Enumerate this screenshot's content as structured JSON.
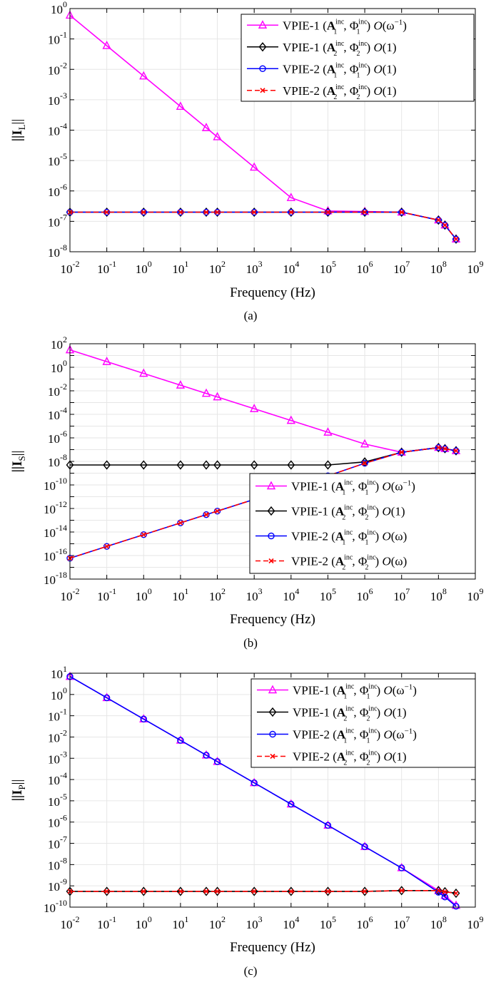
{
  "figure": {
    "captions": [
      "(a)",
      "(b)",
      "(c)"
    ]
  },
  "colors": {
    "vpie1_set1": "#ff00ff",
    "vpie1_set2": "#000000",
    "vpie2_set1": "#0000ff",
    "vpie2_set2": "#ff0000",
    "grid": "#e6e6e6"
  },
  "chart_data": [
    {
      "type": "line",
      "caption": "(a)",
      "xlabel": "Frequency (Hz)",
      "ylabel": "||I_L||",
      "ylabel_main": "||I",
      "ylabel_sub": "L",
      "ylabel_end": "||",
      "xscale": "log",
      "yscale": "log",
      "xlim": [
        0.01,
        1000000000
      ],
      "ylim": [
        1e-08,
        1
      ],
      "xtick_exponents": [
        "-2",
        "-1",
        "0",
        "1",
        "2",
        "3",
        "4",
        "5",
        "6",
        "7",
        "8",
        "9"
      ],
      "ytick_exponents": [
        "0",
        "-1",
        "-2",
        "-3",
        "-4",
        "-5",
        "-6",
        "-7",
        "-8"
      ],
      "grid": true,
      "legend_position": "top-right",
      "x": [
        0.01,
        0.1,
        1,
        10,
        50,
        100,
        1000,
        10000,
        100000,
        1000000,
        10000000,
        100000000,
        150000000,
        300000000
      ],
      "series": [
        {
          "name": "VPIE-1 (A1inc, Φ1inc) O(ω−1)",
          "label": {
            "solver": "VPIE-1",
            "idx": "1",
            "order": "ω",
            "order_sup": "−1"
          },
          "color": "#ff00ff",
          "marker": "triangle",
          "values": [
            0.6,
            0.06,
            0.006,
            0.0006,
            0.00012,
            6e-05,
            6e-06,
            6e-07,
            2.2e-07,
            2.1e-07,
            2e-07,
            1.1e-07,
            7.5e-08,
            2.6e-08
          ]
        },
        {
          "name": "VPIE-1 (A2inc, Φ2inc) O(1)",
          "label": {
            "solver": "VPIE-1",
            "idx": "2",
            "order": "1",
            "order_sup": ""
          },
          "color": "#000000",
          "marker": "diamond",
          "values": [
            2e-07,
            2e-07,
            2e-07,
            2e-07,
            2e-07,
            2e-07,
            2e-07,
            2e-07,
            2e-07,
            2e-07,
            2e-07,
            1.1e-07,
            7.5e-08,
            2.6e-08
          ]
        },
        {
          "name": "VPIE-2 (A1inc, Φ1inc) O(1)",
          "label": {
            "solver": "VPIE-2",
            "idx": "1",
            "order": "1",
            "order_sup": ""
          },
          "color": "#0000ff",
          "marker": "circle",
          "values": [
            2e-07,
            2e-07,
            2e-07,
            2e-07,
            2e-07,
            2e-07,
            2e-07,
            2e-07,
            2e-07,
            2e-07,
            2e-07,
            1.1e-07,
            7.5e-08,
            2.6e-08
          ]
        },
        {
          "name": "VPIE-2 (A2inc, Φ2inc) O(1)",
          "label": {
            "solver": "VPIE-2",
            "idx": "2",
            "order": "1",
            "order_sup": ""
          },
          "color": "#ff0000",
          "marker": "x",
          "dashed": true,
          "values": [
            2e-07,
            2e-07,
            2e-07,
            2e-07,
            2e-07,
            2e-07,
            2e-07,
            2e-07,
            2e-07,
            2e-07,
            2e-07,
            1.1e-07,
            7.5e-08,
            2.6e-08
          ]
        }
      ]
    },
    {
      "type": "line",
      "caption": "(b)",
      "xlabel": "Frequency (Hz)",
      "ylabel": "||I_S||",
      "ylabel_main": "||I",
      "ylabel_sub": "S",
      "ylabel_end": "||",
      "xscale": "log",
      "yscale": "log",
      "xlim": [
        0.01,
        1000000000
      ],
      "ylim": [
        1e-18,
        100
      ],
      "xtick_exponents": [
        "-2",
        "-1",
        "0",
        "1",
        "2",
        "3",
        "4",
        "5",
        "6",
        "7",
        "8",
        "9"
      ],
      "ytick_exponents": [
        "2",
        "0",
        "-2",
        "-4",
        "-6",
        "-8",
        "-10",
        "-12",
        "-14",
        "-16",
        "-18"
      ],
      "grid": true,
      "legend_position": "bottom-right",
      "x": [
        0.01,
        0.1,
        1,
        10,
        50,
        100,
        1000,
        10000,
        100000,
        1000000,
        10000000,
        100000000,
        150000000,
        300000000
      ],
      "series": [
        {
          "name": "VPIE-1 (A1inc, Φ1inc) O(ω−1)",
          "label": {
            "solver": "VPIE-1",
            "idx": "1",
            "order": "ω",
            "order_sup": "−1"
          },
          "color": "#ff00ff",
          "marker": "triangle",
          "values": [
            30,
            3,
            0.3,
            0.03,
            0.006,
            0.003,
            0.0003,
            3e-05,
            3e-06,
            3e-07,
            6e-08,
            1.5e-07,
            1.2e-07,
            8e-08
          ]
        },
        {
          "name": "VPIE-1 (A2inc, Φ2inc) O(1)",
          "label": {
            "solver": "VPIE-1",
            "idx": "2",
            "order": "1",
            "order_sup": ""
          },
          "color": "#000000",
          "marker": "diamond",
          "values": [
            5e-09,
            5e-09,
            5e-09,
            5e-09,
            5e-09,
            5e-09,
            5e-09,
            5e-09,
            5e-09,
            9e-09,
            6e-08,
            1.5e-07,
            1.2e-07,
            8e-08
          ]
        },
        {
          "name": "VPIE-2 (A1inc, Φ1inc) O(ω)",
          "label": {
            "solver": "VPIE-2",
            "idx": "1",
            "order": "ω",
            "order_sup": ""
          },
          "color": "#0000ff",
          "marker": "circle",
          "values": [
            6e-17,
            6e-16,
            6e-15,
            6e-14,
            3e-13,
            6e-13,
            6e-12,
            6e-11,
            6e-10,
            7e-09,
            6e-08,
            1.5e-07,
            1.2e-07,
            8e-08
          ]
        },
        {
          "name": "VPIE-2 (A2inc, Φ2inc) O(ω)",
          "label": {
            "solver": "VPIE-2",
            "idx": "2",
            "order": "ω",
            "order_sup": ""
          },
          "color": "#ff0000",
          "marker": "x",
          "dashed": true,
          "values": [
            6e-17,
            6e-16,
            6e-15,
            6e-14,
            3e-13,
            6e-13,
            6e-12,
            6e-11,
            6e-10,
            7e-09,
            6e-08,
            1.5e-07,
            1.2e-07,
            8e-08
          ]
        }
      ]
    },
    {
      "type": "line",
      "caption": "(c)",
      "xlabel": "Frequency (Hz)",
      "ylabel": "||I_P||",
      "ylabel_main": "||I",
      "ylabel_sub": "P",
      "ylabel_end": "||",
      "xscale": "log",
      "yscale": "log",
      "xlim": [
        0.01,
        1000000000
      ],
      "ylim": [
        1e-10,
        10
      ],
      "xtick_exponents": [
        "-2",
        "-1",
        "0",
        "1",
        "2",
        "3",
        "4",
        "5",
        "6",
        "7",
        "8",
        "9"
      ],
      "ytick_exponents": [
        "1",
        "0",
        "-1",
        "-2",
        "-3",
        "-4",
        "-5",
        "-6",
        "-7",
        "-8",
        "-9",
        "-10"
      ],
      "grid": true,
      "legend_position": "top-right",
      "x": [
        0.01,
        0.1,
        1,
        10,
        50,
        100,
        1000,
        10000,
        100000,
        1000000,
        10000000,
        100000000,
        150000000,
        300000000
      ],
      "series": [
        {
          "name": "VPIE-1 (A1inc, Φ1inc) O(ω−1)",
          "label": {
            "solver": "VPIE-1",
            "idx": "1",
            "order": "ω",
            "order_sup": "−1"
          },
          "color": "#ff00ff",
          "marker": "triangle",
          "values": [
            7,
            0.7,
            0.07,
            0.007,
            0.0014,
            0.0007,
            7e-05,
            7e-06,
            7e-07,
            7e-08,
            7e-09,
            6e-10,
            3.5e-10,
            1.2e-10
          ]
        },
        {
          "name": "VPIE-1 (A2inc, Φ2inc) O(1)",
          "label": {
            "solver": "VPIE-1",
            "idx": "2",
            "order": "1",
            "order_sup": ""
          },
          "color": "#000000",
          "marker": "diamond",
          "values": [
            5.5e-10,
            5.5e-10,
            5.5e-10,
            5.5e-10,
            5.5e-10,
            5.5e-10,
            5.5e-10,
            5.5e-10,
            5.5e-10,
            5.5e-10,
            6e-10,
            6e-10,
            5.3e-10,
            4.5e-10
          ]
        },
        {
          "name": "VPIE-2 (A1inc, Φ1inc) O(ω−1)",
          "label": {
            "solver": "VPIE-2",
            "idx": "1",
            "order": "ω",
            "order_sup": "−1"
          },
          "color": "#0000ff",
          "marker": "circle",
          "values": [
            7,
            0.7,
            0.07,
            0.007,
            0.0014,
            0.0007,
            7e-05,
            7e-06,
            7e-07,
            7e-08,
            7e-09,
            5e-10,
            3e-10,
            1.1e-10
          ]
        },
        {
          "name": "VPIE-2 (A2inc, Φ2inc) O(1)",
          "label": {
            "solver": "VPIE-2",
            "idx": "2",
            "order": "1",
            "order_sup": ""
          },
          "color": "#ff0000",
          "marker": "x",
          "dashed": true,
          "values": [
            5.5e-10,
            5.5e-10,
            5.5e-10,
            5.5e-10,
            5.5e-10,
            5.5e-10,
            5.5e-10,
            5.5e-10,
            5.5e-10,
            5.5e-10,
            6e-10,
            6e-10,
            5.3e-10,
            4.5e-10
          ]
        }
      ]
    }
  ]
}
